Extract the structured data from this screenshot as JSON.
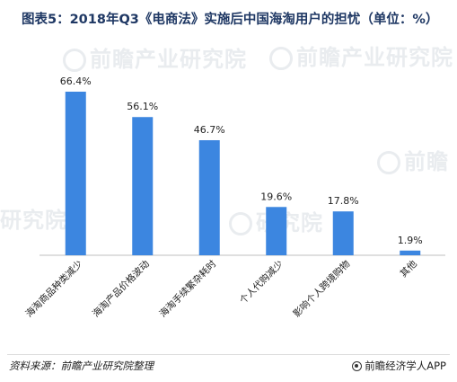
{
  "title": "图表5：2018年Q3《电商法》实施后中国海淘用户的担忧（单位：%）",
  "chart_data": {
    "type": "bar",
    "categories": [
      "海淘商品种类减少",
      "海淘产品价格波动",
      "海淘手续繁杂耗时",
      "个人代购减少",
      "影响个人跨境购物",
      "其他"
    ],
    "values": [
      66.4,
      56.1,
      46.7,
      19.6,
      17.8,
      1.9
    ],
    "value_labels": [
      "66.4%",
      "56.1%",
      "46.7%",
      "19.6%",
      "17.8%",
      "1.9%"
    ],
    "ylim": [
      0,
      66.4
    ],
    "grid": false,
    "bar_color": "#3c86e0"
  },
  "watermarks": {
    "brand_name": "前瞻产业研究院"
  },
  "footer": {
    "source": "资料来源：前瞻产业研究院整理",
    "brand": "前瞻经济学人APP",
    "brand_icon": "qianzhan-logo-icon"
  }
}
